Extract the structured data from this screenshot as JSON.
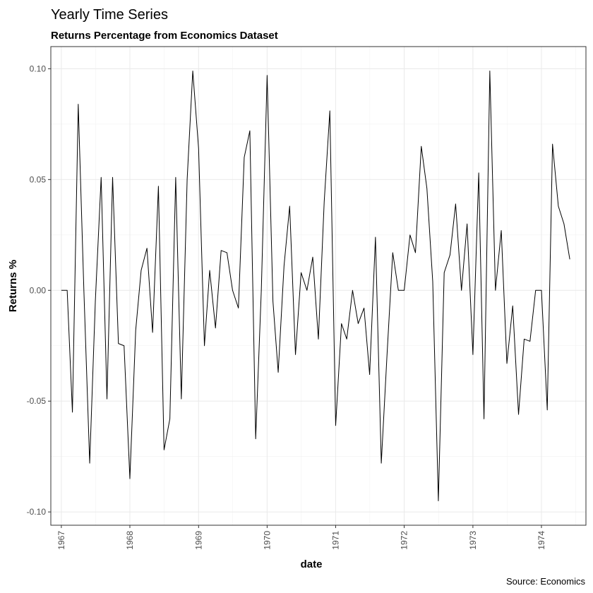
{
  "chart_data": {
    "type": "line",
    "title": "Yearly Time Series",
    "subtitle": "Returns Percentage from Economics Dataset",
    "xlabel": "date",
    "ylabel": "Returns %",
    "caption": "Source: Economics",
    "xlim": [
      "1966-11-06",
      "1974-08-26"
    ],
    "ylim": [
      -0.106,
      0.11
    ],
    "x_ticks": [
      "1967",
      "1968",
      "1969",
      "1970",
      "1971",
      "1972",
      "1973",
      "1974"
    ],
    "y_ticks": [
      {
        "value": 0.1,
        "label": "0.10"
      },
      {
        "value": 0.05,
        "label": "0.05"
      },
      {
        "value": 0.0,
        "label": "0.00"
      },
      {
        "value": -0.05,
        "label": "-0.05"
      },
      {
        "value": -0.1,
        "label": "-0.10"
      }
    ],
    "grid": true,
    "line_color": "#000000",
    "start_date": "1967-01-01",
    "frequency": "monthly",
    "series": [
      {
        "values": [
          0.0,
          0.0,
          -0.055,
          0.084,
          0.0,
          -0.078,
          -0.005,
          0.051,
          -0.049,
          0.051,
          -0.024,
          -0.025,
          -0.085,
          -0.018,
          0.009,
          0.019,
          -0.019,
          0.047,
          -0.072,
          -0.058,
          0.051,
          -0.049,
          0.05,
          0.099,
          0.064,
          -0.025,
          0.009,
          -0.017,
          0.018,
          0.017,
          0.0,
          -0.008,
          0.06,
          0.072,
          -0.067,
          0.0,
          0.097,
          -0.005,
          -0.037,
          0.011,
          0.038,
          -0.029,
          0.008,
          0.0,
          0.015,
          -0.022,
          0.04,
          0.081,
          -0.061,
          -0.015,
          -0.022,
          0.0,
          -0.015,
          -0.008,
          -0.038,
          0.024,
          -0.078,
          -0.03,
          0.017,
          0.0,
          0.0,
          0.025,
          0.017,
          0.065,
          0.046,
          0.004,
          -0.095,
          0.008,
          0.016,
          0.039,
          0.0,
          0.03,
          -0.029,
          0.053,
          -0.058,
          0.099,
          0.0,
          0.027,
          -0.033,
          -0.007,
          -0.056,
          -0.022,
          -0.023,
          0.0,
          0.0,
          -0.054,
          0.066,
          0.038,
          0.03,
          0.014
        ]
      }
    ]
  }
}
